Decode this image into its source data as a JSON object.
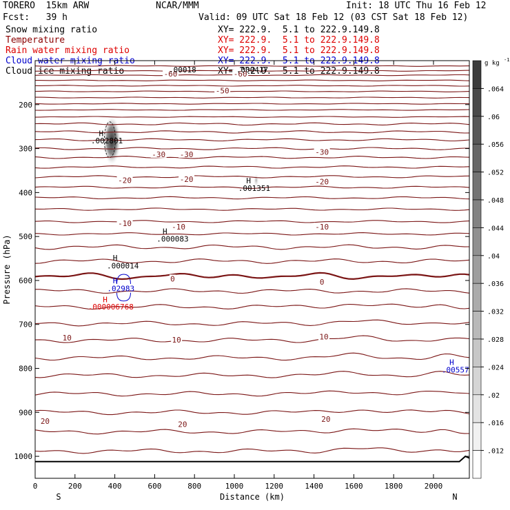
{
  "header": {
    "model": "TORERO  15km ARW",
    "center": "NCAR/MMM",
    "init": "Init: 18 UTC Thu 16 Feb 12",
    "fcst": "Fcst:   39 h",
    "valid": "Valid: 09 UTC Sat 18 Feb 12 (03 CST Sat 18 Feb 12)"
  },
  "fields": [
    {
      "name": "Snow mixing ratio",
      "xy": "XY= 222.9.  5.1 to 222.9.149.8",
      "color": "#000000"
    },
    {
      "name": "Temperature",
      "xy": "XY= 222.9.  5.1 to 222.9.149.8",
      "color": "#8b0000"
    },
    {
      "name": "Rain water mixing ratio",
      "xy": "XY= 222.9.  5.1 to 222.9.149.8",
      "color": "#dd0000"
    },
    {
      "name": "Cloud water mixing ratio",
      "xy": "XY= 222.9.  5.1 to 222.9.149.8",
      "color": "#0000cc"
    },
    {
      "name": "Cloud ice mixing ratio",
      "xy": "XY= 222.9.  5.1 to 222.9.149.8",
      "color": "#000000"
    }
  ],
  "chart_data": {
    "type": "contour-cross-section",
    "xlabel": "Distance (km)",
    "ylabel": "Pressure (hPa)",
    "xlim": [
      0,
      2180
    ],
    "ylim": [
      1050,
      100
    ],
    "x_ticks": [
      0,
      200,
      400,
      600,
      800,
      1000,
      1200,
      1400,
      1600,
      1800,
      2000
    ],
    "y_ticks": [
      200,
      300,
      400,
      500,
      600,
      700,
      800,
      900,
      1000
    ],
    "left_end_label": "S",
    "right_end_label": "N",
    "colorbar": {
      "unit": "g kg",
      "unit_exp": "-1",
      "ticks": [
        ".064",
        ".06",
        ".056",
        ".052",
        ".048",
        ".044",
        ".04",
        ".036",
        ".032",
        ".028",
        ".024",
        ".02",
        ".016",
        ".012"
      ]
    },
    "temperature_labels": [
      {
        "text": "-60",
        "x": 680,
        "p": 130
      },
      {
        "text": "-60",
        "x": 1030,
        "p": 130
      },
      {
        "text": "-50",
        "x": 940,
        "p": 168
      },
      {
        "text": "-30",
        "x": 620,
        "p": 313
      },
      {
        "text": "-30",
        "x": 760,
        "p": 313
      },
      {
        "text": "-30",
        "x": 1440,
        "p": 308
      },
      {
        "text": "-20",
        "x": 450,
        "p": 372
      },
      {
        "text": "-20",
        "x": 760,
        "p": 370
      },
      {
        "text": "-20",
        "x": 1440,
        "p": 375
      },
      {
        "text": "-10",
        "x": 450,
        "p": 470
      },
      {
        "text": "-10",
        "x": 720,
        "p": 478
      },
      {
        "text": "-10",
        "x": 1440,
        "p": 478
      },
      {
        "text": "0",
        "x": 690,
        "p": 596
      },
      {
        "text": "0",
        "x": 1440,
        "p": 603
      },
      {
        "text": "10",
        "x": 160,
        "p": 730
      },
      {
        "text": "10",
        "x": 710,
        "p": 735
      },
      {
        "text": "10",
        "x": 1450,
        "p": 728
      },
      {
        "text": "20",
        "x": 50,
        "p": 920
      },
      {
        "text": "20",
        "x": 740,
        "p": 927
      },
      {
        "text": "20",
        "x": 1460,
        "p": 915
      }
    ],
    "extrema": [
      {
        "h": "H",
        "value": ".00018",
        "x": 740,
        "p": 120,
        "color": "#000000",
        "hx": 0,
        "hp": 0
      },
      {
        "h": "H",
        "value": ".000417",
        "x": 1090,
        "p": 120,
        "color": "#000000",
        "hx": 0,
        "hp": 0
      },
      {
        "h": "H",
        "value": ".002801",
        "x": 360,
        "p": 282,
        "color": "#000000",
        "hx": 320,
        "hp": 265
      },
      {
        "h": "H",
        "value": ".001351",
        "x": 1100,
        "p": 390,
        "color": "#000000",
        "hx": 1060,
        "hp": 373
      },
      {
        "h": "H",
        "value": ".000083",
        "x": 690,
        "p": 505,
        "color": "#000000",
        "hx": 640,
        "hp": 488
      },
      {
        "h": "H",
        "value": ".000014",
        "x": 440,
        "p": 566,
        "color": "#000000",
        "hx": 390,
        "hp": 548
      },
      {
        "h": "H",
        "value": ".02983",
        "x": 430,
        "p": 618,
        "color": "#0000cc",
        "hx": 390,
        "hp": 600
      },
      {
        "h": "H",
        "value": ".000006768",
        "x": 380,
        "p": 660,
        "color": "#dd0000",
        "hx": 340,
        "hp": 643
      },
      {
        "h": "H",
        "value": ".00557",
        "x": 2110,
        "p": 803,
        "color": "#0000cc",
        "hx": 2080,
        "hp": 786
      }
    ],
    "isotherm_pressures": [
      112,
      123,
      133,
      145,
      157,
      170,
      184,
      198,
      212,
      228,
      244,
      262,
      280,
      300,
      320,
      342,
      364,
      388,
      412,
      438,
      466,
      494,
      524,
      556,
      590,
      624,
      660,
      698,
      736,
      776,
      816,
      858,
      900,
      944,
      988
    ],
    "zero_isotherm_index": 24
  }
}
